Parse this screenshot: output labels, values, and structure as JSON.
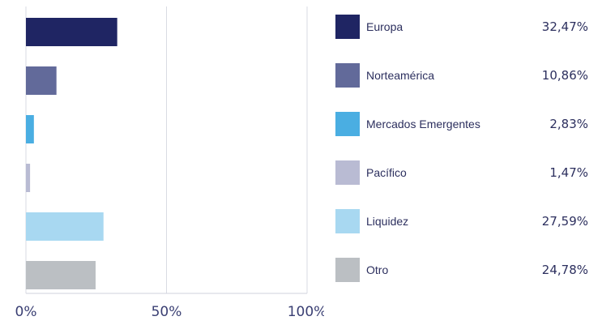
{
  "chart_data": {
    "type": "bar",
    "orientation": "horizontal",
    "categories": [
      "Europa",
      "Norteamérica",
      "Mercados Emergentes",
      "Pacífico",
      "Liquidez",
      "Otro"
    ],
    "values": [
      32.47,
      10.86,
      2.83,
      1.47,
      27.59,
      24.78
    ],
    "value_labels": [
      "32,47%",
      "10,86%",
      "2,83%",
      "1,47%",
      "27,59%",
      "24,78%"
    ],
    "colors": [
      "#1f2563",
      "#626a9a",
      "#4aaee2",
      "#b9bbd3",
      "#a8d8f1",
      "#bbbfc3"
    ],
    "xlim": [
      0,
      100
    ],
    "x_ticks": [
      0,
      50,
      100
    ],
    "x_tick_labels": [
      "0%",
      "50%",
      "100%"
    ],
    "grid": true,
    "legend_position": "right"
  }
}
